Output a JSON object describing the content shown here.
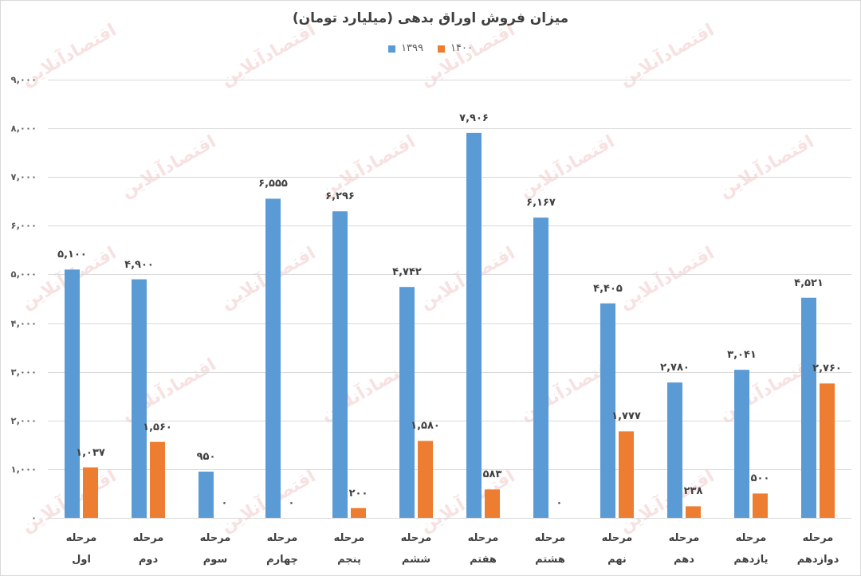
{
  "watermark": {
    "text": "اقتصادآنلاین"
  },
  "colors": {
    "text": "#404040",
    "axis_text": "#595959",
    "gridline": "#d9d9d9",
    "border": "#d9d9d9",
    "watermark": "#f2caca"
  },
  "chart_data": {
    "type": "bar",
    "title": "میزان فروش اوراق بدهی (میلیارد تومان)",
    "categories": [
      "مرحله اول",
      "مرحله دوم",
      "مرحله سوم",
      "مرحله چهارم",
      "مرحله پنجم",
      "مرحله ششم",
      "مرحله هفتم",
      "مرحله هشتم",
      "مرحله نهم",
      "مرحله دهم",
      "مرحله یازدهم",
      "مرحله دوازدهم"
    ],
    "series": [
      {
        "name": "۱۳۹۹",
        "color": "#5b9bd5",
        "values": [
          5100,
          4900,
          950,
          6555,
          6296,
          4742,
          7906,
          6167,
          4405,
          2780,
          3041,
          4521
        ],
        "labels": [
          "۵,۱۰۰",
          "۴,۹۰۰",
          "۹۵۰",
          "۶,۵۵۵",
          "۶,۲۹۶",
          "۴,۷۴۲",
          "۷,۹۰۶",
          "۶,۱۶۷",
          "۴,۴۰۵",
          "۲,۷۸۰",
          "۳,۰۴۱",
          "۴,۵۲۱"
        ]
      },
      {
        "name": "۱۴۰۰",
        "color": "#ed7d31",
        "values": [
          1037,
          1560,
          0,
          0,
          200,
          1580,
          583,
          0,
          1777,
          238,
          500,
          2760
        ],
        "labels": [
          "۱,۰۳۷",
          "۱,۵۶۰",
          "۰",
          "۰",
          "۲۰۰",
          "۱,۵۸۰",
          "۵۸۳",
          "۰",
          "۱,۷۷۷",
          "۲۳۸",
          "۵۰۰",
          "۲,۷۶۰"
        ]
      }
    ],
    "ylim": [
      0,
      9000
    ],
    "y_ticks": [
      0,
      1000,
      2000,
      3000,
      4000,
      5000,
      6000,
      7000,
      8000,
      9000
    ],
    "y_tick_labels": [
      "۰",
      "۱,۰۰۰",
      "۲,۰۰۰",
      "۳,۰۰۰",
      "۴,۰۰۰",
      "۵,۰۰۰",
      "۶,۰۰۰",
      "۷,۰۰۰",
      "۸,۰۰۰",
      "۹,۰۰۰"
    ],
    "grid": true,
    "legend": "top-center"
  }
}
